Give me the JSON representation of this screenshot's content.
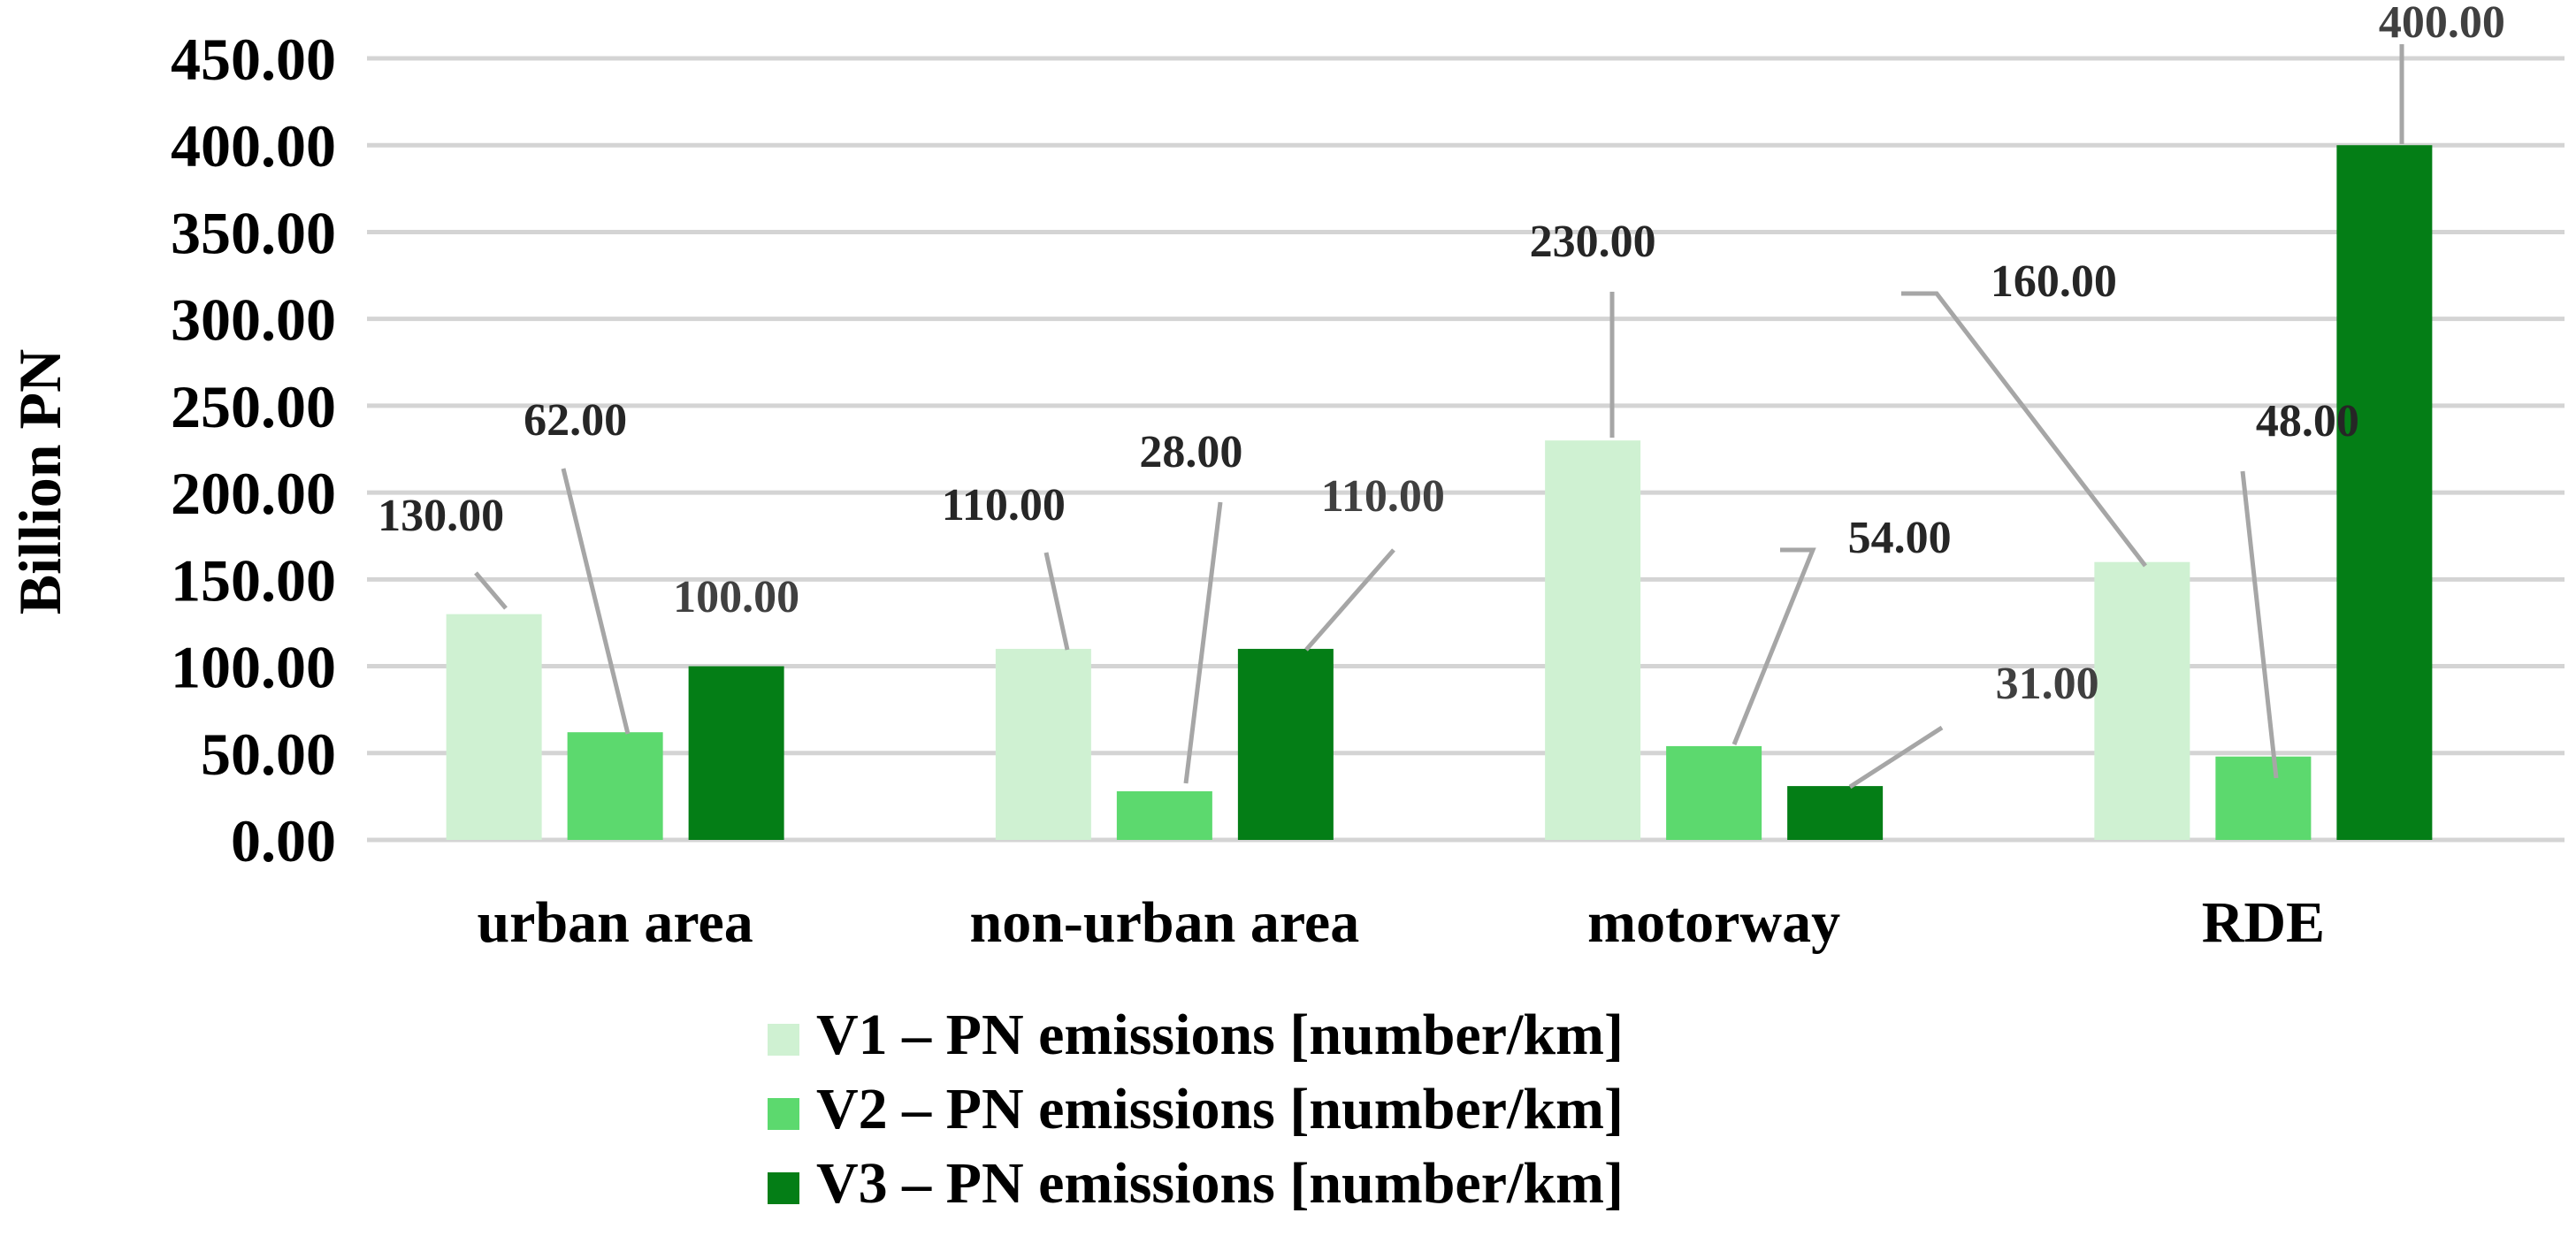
{
  "chart_data": {
    "type": "bar",
    "ylabel": "Billion PN",
    "ylim": [
      0,
      450
    ],
    "y_ticks": [
      "0.00",
      "50.00",
      "100.00",
      "150.00",
      "200.00",
      "250.00",
      "300.00",
      "350.00",
      "400.00",
      "450.00"
    ],
    "grid": true,
    "legend_position": "bottom",
    "categories": [
      "urban area",
      "non-urban area",
      "motorway",
      "RDE"
    ],
    "series": [
      {
        "name": "V1 – PN emissions [number/km]",
        "color": "#cff1d2",
        "values": [
          130,
          110,
          230,
          160
        ],
        "labels": [
          "130.00",
          "110.00",
          "230.00",
          "160.00"
        ]
      },
      {
        "name": "V2 – PN emissions [number/km]",
        "color": "#5cd96e",
        "values": [
          62,
          28,
          54,
          48
        ],
        "labels": [
          "62.00",
          "28.00",
          "54.00",
          "48.00"
        ]
      },
      {
        "name": "V3 – PN emissions [number/km]",
        "color": "#047e16",
        "values": [
          100,
          110,
          31,
          400
        ],
        "labels": [
          "100.00",
          "110.00",
          "31.00",
          "400.00"
        ]
      }
    ]
  }
}
